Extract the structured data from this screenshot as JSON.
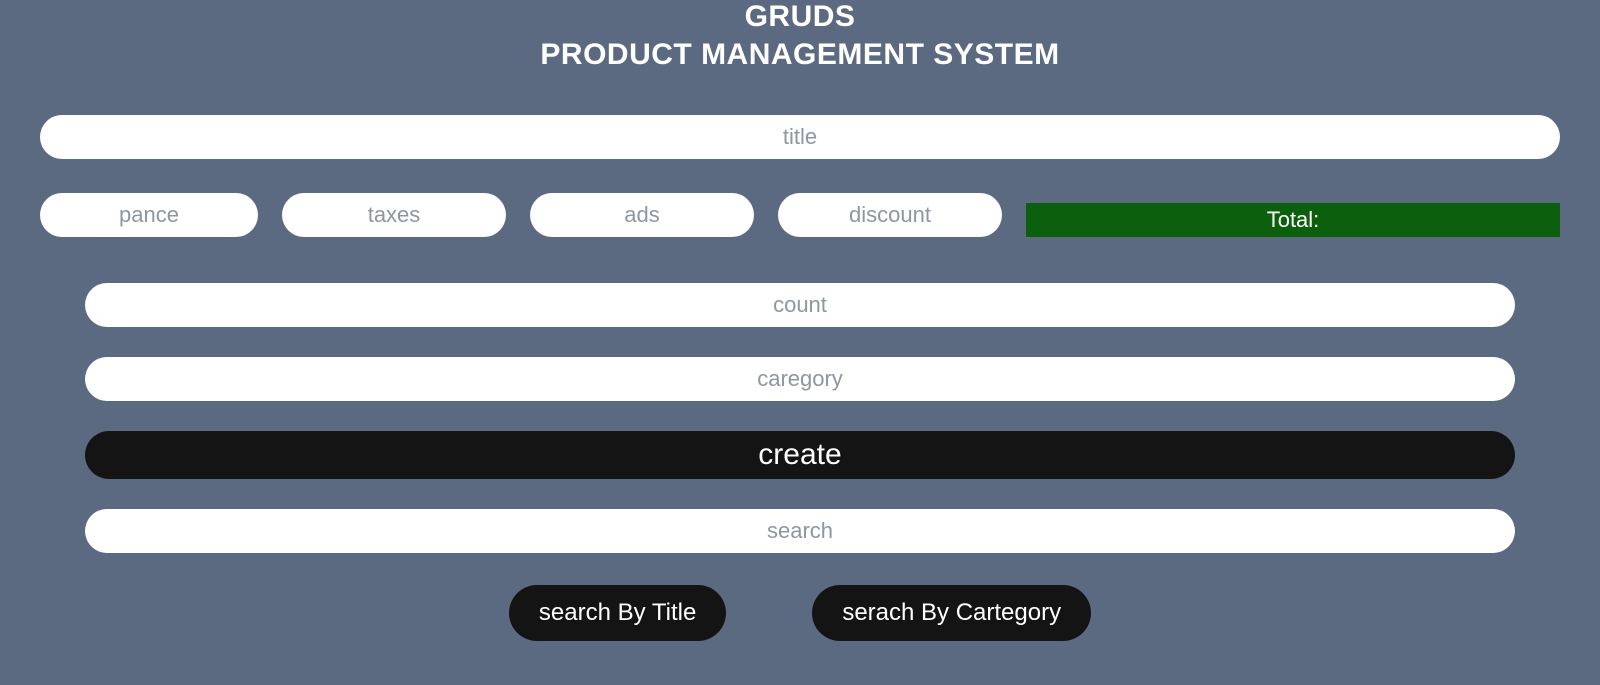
{
  "header": {
    "line1": "GRUDS",
    "line2": "PRODUCT MANAGEMENT SYSTEM"
  },
  "inputs": {
    "title_placeholder": "title",
    "pance_placeholder": "pance",
    "taxes_placeholder": "taxes",
    "ads_placeholder": "ads",
    "discount_placeholder": "discount",
    "count_placeholder": "count",
    "category_placeholder": "caregory",
    "search_placeholder": "search"
  },
  "total": {
    "label": "Total:"
  },
  "buttons": {
    "create": "create",
    "search_by_title": "search By Title",
    "search_by_category": "serach By Cartegory"
  },
  "colors": {
    "background": "#5b6a80",
    "input_bg": "#ffffff",
    "placeholder": "#8e96a3",
    "total_bg": "#0c5f0c",
    "button_bg": "#141414",
    "text_white": "#ffffff"
  }
}
